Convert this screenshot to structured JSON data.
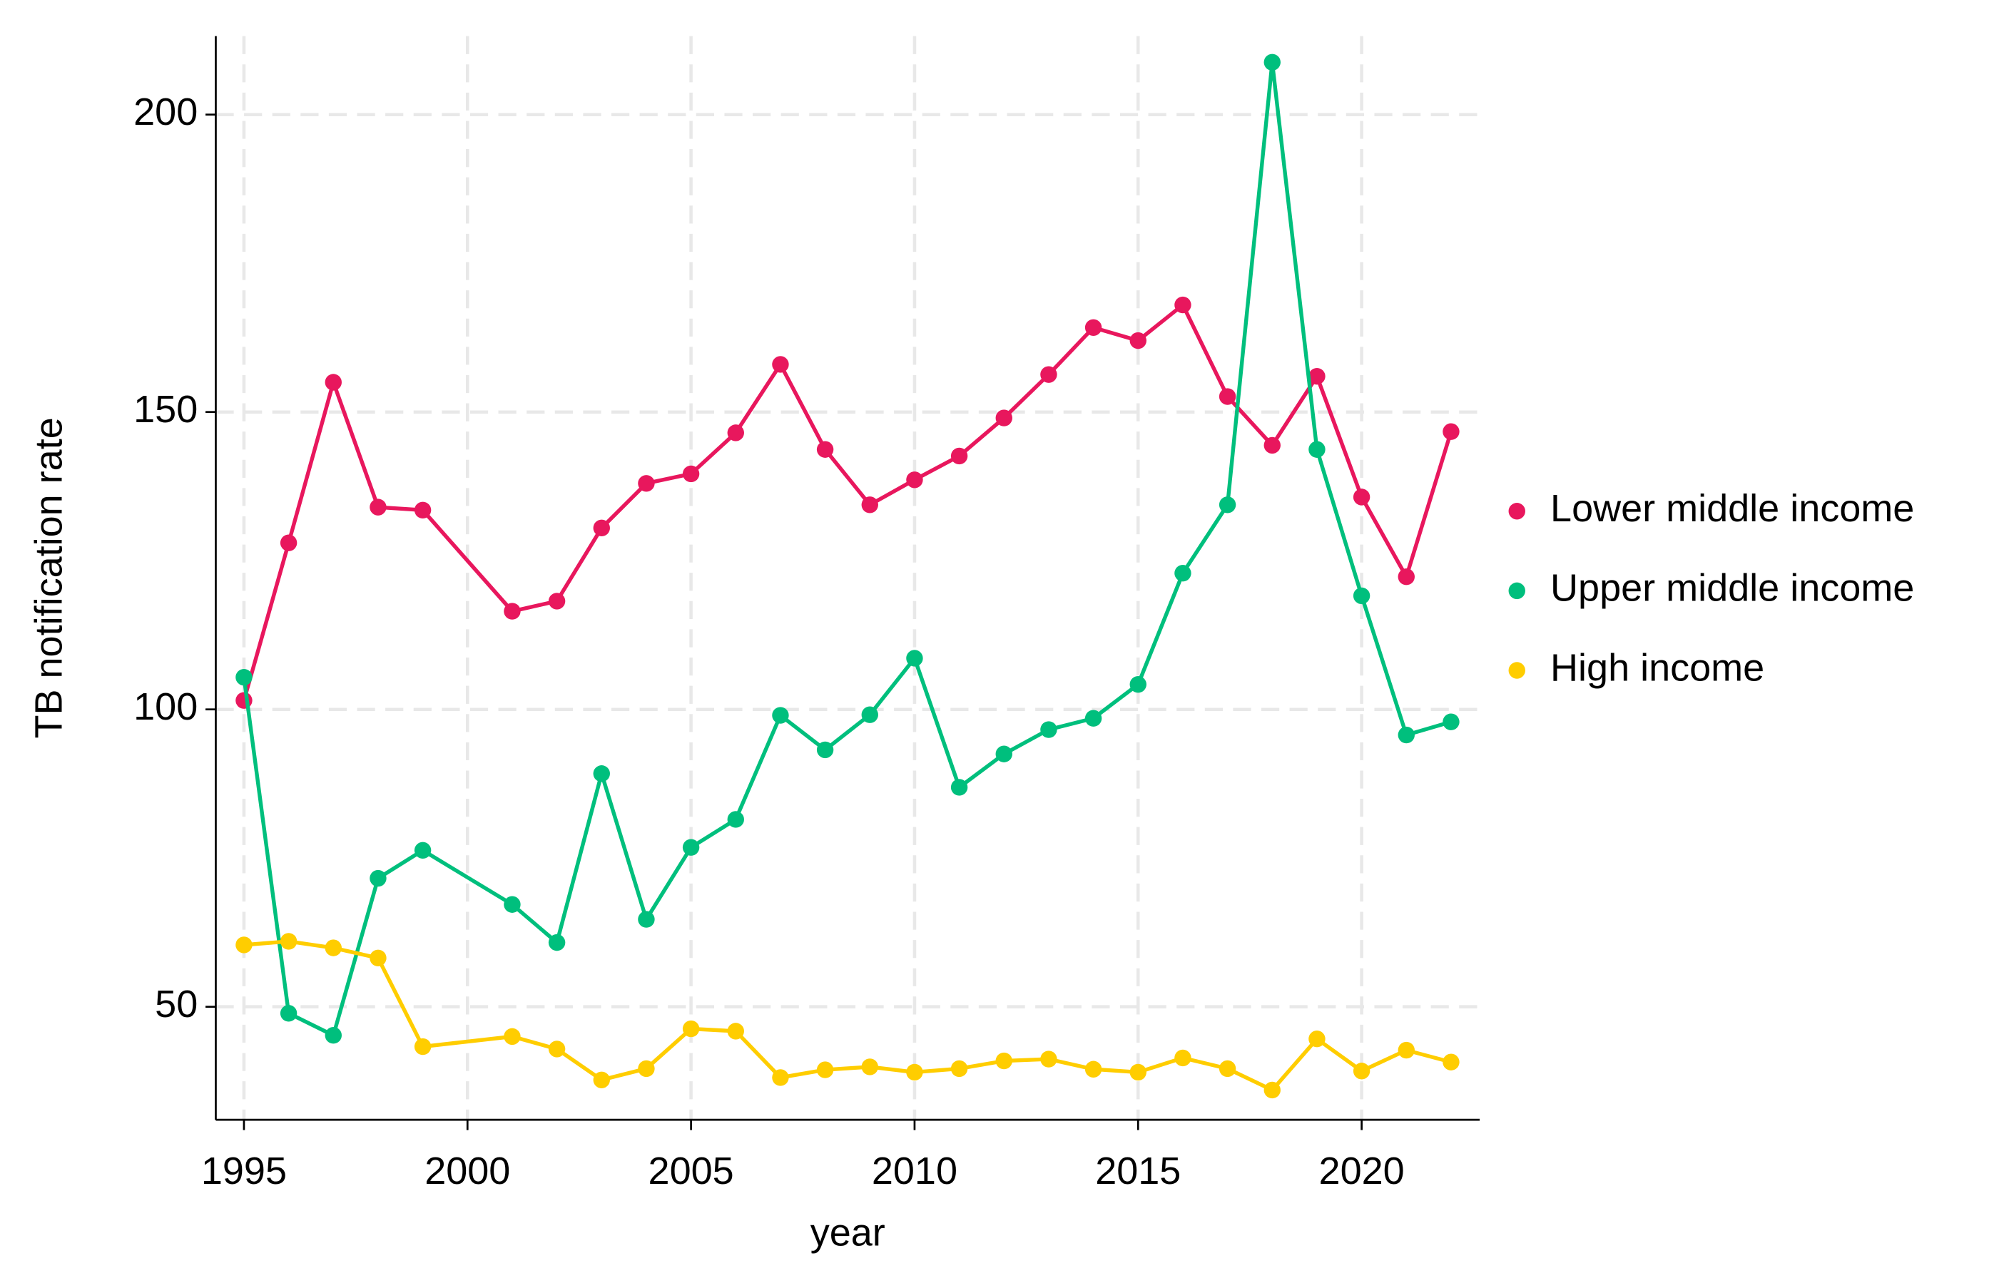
{
  "chart_data": {
    "type": "line",
    "x_label": "year",
    "y_label": "TB notification rate",
    "x": [
      1995,
      1996,
      1997,
      1998,
      1999,
      2001,
      2002,
      2003,
      2004,
      2005,
      2006,
      2007,
      2008,
      2009,
      2010,
      2011,
      2012,
      2013,
      2014,
      2015,
      2016,
      2017,
      2018,
      2019,
      2020,
      2021,
      2022
    ],
    "series": [
      {
        "name": "Lower middle income",
        "color": "#e8175d",
        "values": [
          101.5,
          128,
          155,
          134,
          133.5,
          116.5,
          118.2,
          130.5,
          138,
          139.6,
          146.5,
          158,
          143.7,
          134.4,
          138.6,
          142.6,
          149,
          156.3,
          164.2,
          162,
          168,
          152.6,
          144.4,
          156,
          135.7,
          122.3,
          146.7
        ]
      },
      {
        "name": "Upper middle income",
        "color": "#00bf7d",
        "values": [
          105.4,
          48.9,
          45.2,
          71.6,
          76.3,
          67.2,
          60.8,
          89.2,
          64.7,
          76.8,
          81.5,
          99,
          93.2,
          99.1,
          108.6,
          86.9,
          92.5,
          96.6,
          98.5,
          104.2,
          122.9,
          134.4,
          208.8,
          143.7,
          119.1,
          95.7,
          97.9
        ]
      },
      {
        "name": "High income",
        "color": "#ffcd00",
        "values": [
          60.4,
          61,
          59.9,
          58.2,
          43.3,
          45,
          42.9,
          37.7,
          39.6,
          46.3,
          45.9,
          38.1,
          39.4,
          39.9,
          39,
          39.6,
          40.9,
          41.2,
          39.5,
          39,
          41.4,
          39.6,
          36,
          44.6,
          39.2,
          42.7,
          40.7
        ]
      }
    ],
    "xlim": [
      1994.37,
      2022.64
    ],
    "xticks": [
      1995,
      2000,
      2005,
      2010,
      2015,
      2020
    ],
    "ylim": [
      31,
      213.2
    ],
    "yticks": [
      50,
      100,
      150,
      200
    ],
    "grid": true,
    "legend": "right"
  }
}
